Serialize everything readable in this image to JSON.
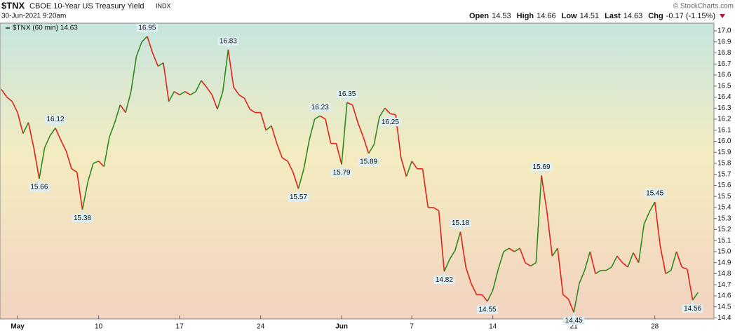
{
  "header": {
    "symbol": "$TNX",
    "name": "CBOE 10-Year US Treasury Yield",
    "exchange": "INDX",
    "date": "30-Jun-2021 9:20am",
    "credit": "© StockCharts.com",
    "quote": [
      {
        "label": "Open",
        "value": "14.53"
      },
      {
        "label": "High",
        "value": "14.66"
      },
      {
        "label": "Low",
        "value": "14.51"
      },
      {
        "label": "Last",
        "value": "14.63"
      },
      {
        "label": "Chg",
        "value": "-0.17 (-1.15%)"
      }
    ]
  },
  "chart_data": {
    "type": "line",
    "categories": [
      null,
      null,
      null,
      "May",
      null,
      null,
      null,
      null,
      null,
      null,
      null,
      null,
      null,
      null,
      null,
      null,
      null,
      null,
      "10",
      null,
      null,
      null,
      null,
      null,
      null,
      null,
      null,
      null,
      null,
      null,
      null,
      null,
      null,
      "17",
      null,
      null,
      null,
      null,
      null,
      null,
      null,
      null,
      null,
      null,
      null,
      null,
      null,
      null,
      "24",
      null,
      null,
      null,
      null,
      null,
      null,
      null,
      null,
      null,
      null,
      null,
      null,
      null,
      null,
      "Jun",
      null,
      null,
      null,
      null,
      null,
      null,
      null,
      null,
      null,
      null,
      null,
      null,
      "7",
      null,
      null,
      null,
      null,
      null,
      null,
      null,
      null,
      null,
      null,
      null,
      null,
      null,
      null,
      "14",
      null,
      null,
      null,
      null,
      null,
      null,
      null,
      null,
      null,
      null,
      null,
      null,
      null,
      null,
      "21",
      null,
      null,
      null,
      null,
      null,
      null,
      null,
      null,
      null,
      null,
      null,
      null,
      null,
      null,
      "28",
      null,
      null,
      null,
      null,
      null,
      null,
      null,
      null
    ],
    "series": [
      {
        "name": "$TNX (60 min) 14.63",
        "up_color": "#2f8a1f",
        "down_color": "#e02219",
        "values": [
          16.47,
          16.4,
          16.36,
          16.26,
          16.07,
          16.17,
          15.94,
          15.66,
          15.94,
          16.05,
          16.12,
          16.01,
          15.91,
          15.75,
          15.72,
          15.38,
          15.63,
          15.8,
          15.82,
          15.77,
          16.04,
          16.17,
          16.33,
          16.26,
          16.45,
          16.77,
          16.9,
          16.95,
          16.8,
          16.68,
          16.71,
          16.36,
          16.45,
          16.42,
          16.45,
          16.42,
          16.45,
          16.55,
          16.49,
          16.42,
          16.29,
          16.45,
          16.83,
          16.49,
          16.42,
          16.39,
          16.29,
          16.26,
          16.26,
          16.1,
          16.14,
          15.98,
          15.85,
          15.82,
          15.72,
          15.57,
          15.75,
          16.01,
          16.2,
          16.23,
          16.2,
          15.98,
          15.98,
          15.79,
          16.35,
          16.33,
          16.17,
          16.04,
          15.89,
          15.97,
          16.22,
          16.3,
          16.25,
          16.24,
          15.85,
          15.68,
          15.82,
          15.75,
          15.75,
          15.4,
          15.4,
          15.37,
          14.82,
          14.93,
          15.01,
          15.18,
          14.86,
          14.71,
          14.61,
          14.61,
          14.55,
          14.65,
          14.84,
          15.0,
          15.03,
          15.0,
          15.03,
          14.9,
          14.87,
          14.9,
          15.69,
          15.37,
          14.96,
          15.03,
          14.61,
          14.57,
          14.45,
          14.71,
          14.83,
          15.0,
          14.8,
          14.83,
          14.83,
          14.86,
          14.96,
          14.9,
          14.86,
          14.99,
          14.9,
          15.25,
          15.36,
          15.45,
          15.05,
          14.8,
          14.83,
          15.0,
          14.86,
          14.84,
          14.56,
          14.63
        ]
      }
    ],
    "annotations": [
      16.12,
      15.66,
      15.38,
      16.95,
      16.83,
      15.57,
      16.23,
      15.79,
      16.35,
      15.89,
      16.25,
      15.18,
      14.82,
      14.55,
      15.69,
      14.45,
      15.45,
      14.56
    ],
    "ylim": [
      14.39,
      17.07
    ],
    "yticks": [
      {
        "value": 14.4,
        "label": "14.4"
      },
      {
        "value": 14.5,
        "label": "14.5"
      },
      {
        "value": 14.6,
        "label": "14.6"
      },
      {
        "value": 14.7,
        "label": "14.7"
      },
      {
        "value": 14.8,
        "label": "14.8"
      },
      {
        "value": 14.9,
        "label": "14.9"
      },
      {
        "value": 15,
        "label": "15.0"
      },
      {
        "value": 15.1,
        "label": "15.1"
      },
      {
        "value": 15.2,
        "label": "15.2"
      },
      {
        "value": 15.3,
        "label": "15.3"
      },
      {
        "value": 15.4,
        "label": "15.4"
      },
      {
        "value": 15.5,
        "label": "15.5"
      },
      {
        "value": 15.6,
        "label": "15.6"
      },
      {
        "value": 15.7,
        "label": "15.7"
      },
      {
        "value": 15.8,
        "label": "15.8"
      },
      {
        "value": 15.9,
        "label": "15.9"
      },
      {
        "value": 16,
        "label": "16.0"
      },
      {
        "value": 16.1,
        "label": "16.1"
      },
      {
        "value": 16.2,
        "label": "16.2"
      },
      {
        "value": 16.3,
        "label": "16.3"
      },
      {
        "value": 16.4,
        "label": "16.4"
      },
      {
        "value": 16.5,
        "label": "16.5"
      },
      {
        "value": 16.6,
        "label": "16.6"
      },
      {
        "value": 16.7,
        "label": "16.7"
      },
      {
        "value": 16.8,
        "label": "16.8"
      },
      {
        "value": 16.9,
        "label": "16.9"
      },
      {
        "value": 17,
        "label": "17.0"
      }
    ],
    "grid": false
  }
}
